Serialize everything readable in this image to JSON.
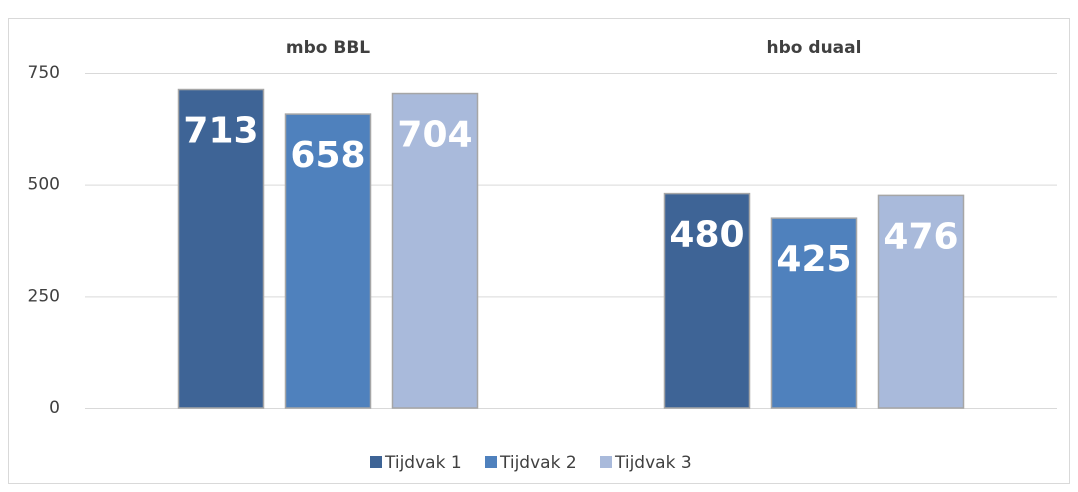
{
  "chart_data": {
    "type": "bar",
    "categories": [
      "mbo BBL",
      "hbo duaal"
    ],
    "series": [
      {
        "name": "Tijdvak 1",
        "color": "#3e6496",
        "values": [
          713,
          480
        ]
      },
      {
        "name": "Tijdvak 2",
        "color": "#4f81bd",
        "values": [
          658,
          425
        ]
      },
      {
        "name": "Tijdvak 3",
        "color": "#a9badb",
        "values": [
          704,
          476
        ]
      }
    ],
    "ylim": [
      0,
      750
    ],
    "yticks": [
      0,
      250,
      500,
      750
    ],
    "grid": true,
    "legend": "bottom"
  }
}
